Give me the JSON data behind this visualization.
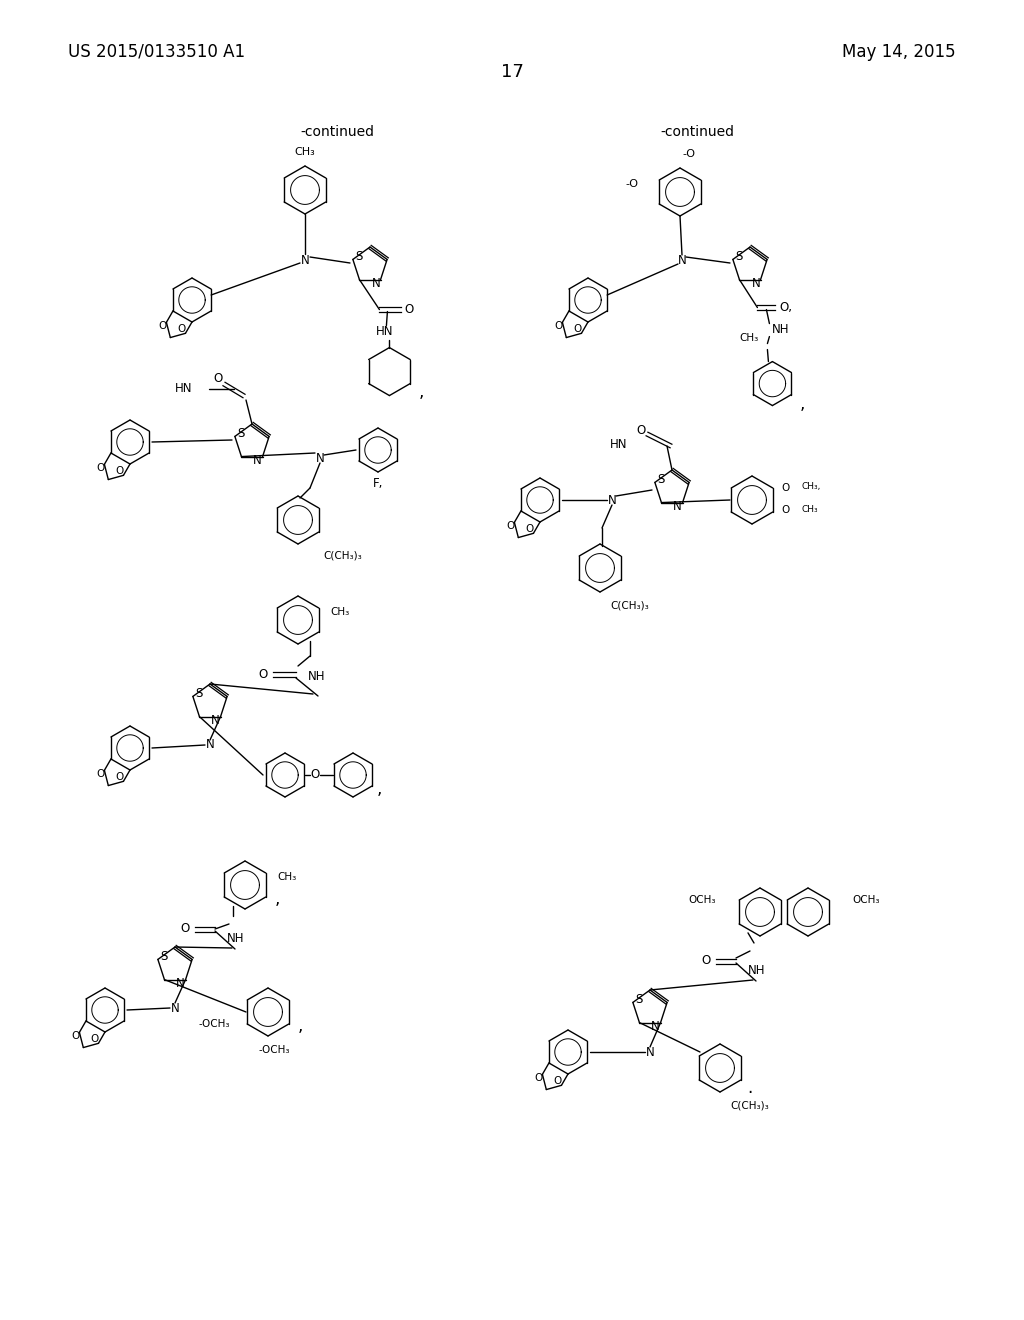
{
  "background_color": "#ffffff",
  "header_left": "US 2015/0133510 A1",
  "header_right": "May 14, 2015",
  "page_number": "17",
  "continued_left": "-continued",
  "continued_right": "-continued",
  "font_size_header": 12,
  "font_size_page": 13,
  "font_size_continued": 10,
  "font_size_atom": 8.5,
  "bond_lw": 1.0
}
